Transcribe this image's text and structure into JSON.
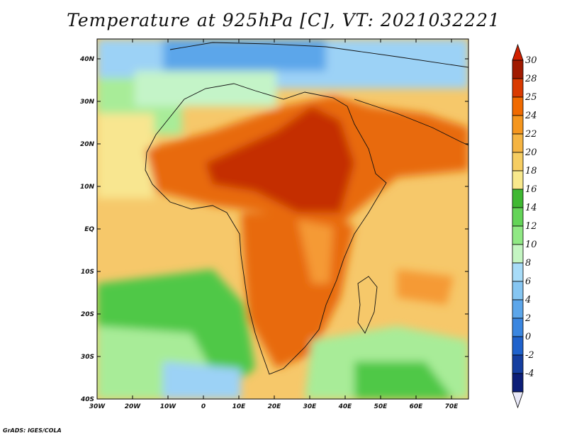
{
  "title": "Temperature at 925hPa [C], VT: 2021032221",
  "footer": "GrADS: IGES/COLA",
  "map": {
    "lon_range": [
      -30,
      75
    ],
    "lat_range": [
      -40,
      45
    ],
    "lon_ticks": [
      "30W",
      "20W",
      "10W",
      "0",
      "10E",
      "20E",
      "30E",
      "40E",
      "50E",
      "60E",
      "70E"
    ],
    "lat_ticks": [
      "40N",
      "30N",
      "20N",
      "10N",
      "EQ",
      "10S",
      "20S",
      "30S",
      "40S"
    ],
    "region": "Africa"
  },
  "colorbar": {
    "labels": [
      "30",
      "28",
      "25",
      "24",
      "22",
      "20",
      "18",
      "16",
      "14",
      "12",
      "10",
      "8",
      "6",
      "4",
      "2",
      "0",
      "-2",
      "-4"
    ],
    "colors": [
      "#a01a00",
      "#d93a00",
      "#f06a00",
      "#f5961e",
      "#f5b442",
      "#f6cd62",
      "#f8e88c",
      "#3fb832",
      "#64d458",
      "#90e884",
      "#c4f5c2",
      "#a8dcf8",
      "#86c6f2",
      "#5ca6ea",
      "#3a86e0",
      "#1f62cc",
      "#153ea0",
      "#0c1e78"
    ],
    "under_color": "#e8e8f8",
    "over_color": "#d02000"
  },
  "colors": {
    "hot": "#c42d05",
    "warm": "#e86a10",
    "orange": "#f59a34",
    "tan": "#f6c86a",
    "yellow": "#f8e690",
    "ltgreen": "#a8ec98",
    "green": "#50c846",
    "cyan": "#c4f4c8",
    "ltblue": "#9cd2f6",
    "blue": "#5ca6ea"
  }
}
